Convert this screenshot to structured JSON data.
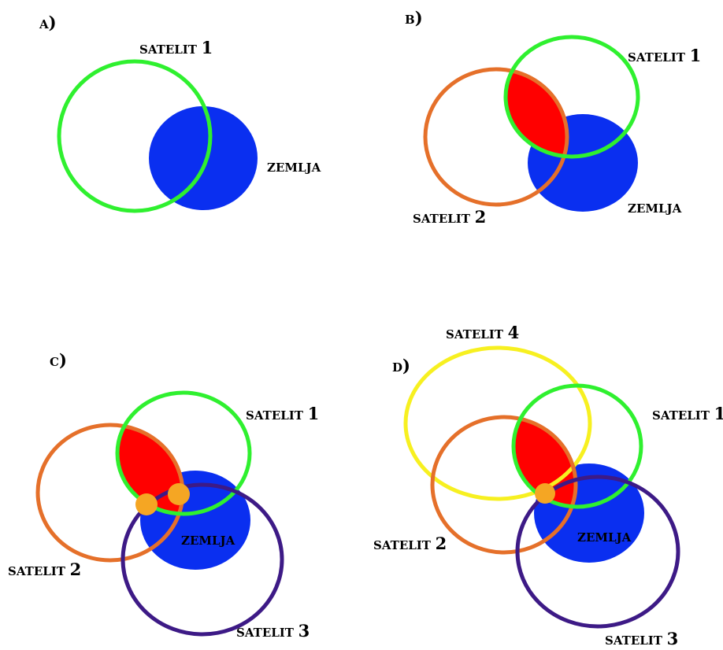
{
  "colors": {
    "earth": "#0a2ff0",
    "satellite_1": "#2ff02f",
    "satellite_2": "#e5702a",
    "satellite_3": "#3d1a86",
    "satellite_4": "#f7f020",
    "intersection_area": "#ff0000",
    "candidate_point": "#f5a623"
  },
  "panels": [
    {
      "id": "a",
      "letter": "A",
      "earth": "ZEMLJA",
      "satellites": [
        {
          "word": "SATELIT",
          "num": "1"
        }
      ]
    },
    {
      "id": "b",
      "letter": "B",
      "earth": "ZEMLJA",
      "satellites": [
        {
          "word": "SATELIT",
          "num": "1"
        },
        {
          "word": "SATELIT",
          "num": "2"
        }
      ]
    },
    {
      "id": "c",
      "letter": "C",
      "earth": "ZEMLJA",
      "satellites": [
        {
          "word": "SATELIT",
          "num": "1"
        },
        {
          "word": "SATELIT",
          "num": "2"
        },
        {
          "word": "SATELIT",
          "num": "3"
        }
      ]
    },
    {
      "id": "d",
      "letter": "D",
      "earth": "ZEMLJA",
      "satellites": [
        {
          "word": "SATELIT",
          "num": "1"
        },
        {
          "word": "SATELIT",
          "num": "2"
        },
        {
          "word": "SATELIT",
          "num": "3"
        },
        {
          "word": "SATELIT",
          "num": "4"
        }
      ]
    }
  ]
}
